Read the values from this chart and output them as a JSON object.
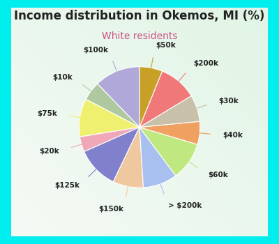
{
  "title": "Income distribution in Okemos, MI (%)",
  "subtitle": "White residents",
  "title_color": "#222222",
  "subtitle_color": "#cc5588",
  "outer_bg": "#00eeee",
  "inner_bg_top": "#e8f8f0",
  "inner_bg_bottom": "#d0f0e8",
  "labels": [
    "$100k",
    "$10k",
    "$75k",
    "$20k",
    "$125k",
    "$150k",
    "> $200k",
    "$60k",
    "$40k",
    "$30k",
    "$200k",
    "$50k"
  ],
  "sizes": [
    12,
    5,
    10,
    4,
    11,
    8,
    9,
    10,
    6,
    7,
    10,
    6
  ],
  "colors": [
    "#b0a8d8",
    "#b0c8a0",
    "#f0f070",
    "#f0a8b8",
    "#8080cc",
    "#f0c8a0",
    "#a8c0f0",
    "#c0e880",
    "#f0a060",
    "#c8c0a8",
    "#f07878",
    "#c8a028"
  ],
  "label_fontsize": 7.5,
  "title_fontsize": 12,
  "subtitle_fontsize": 10,
  "startangle": 90,
  "wedge_linewidth": 0.8,
  "wedge_edgecolor": "#ffffff"
}
